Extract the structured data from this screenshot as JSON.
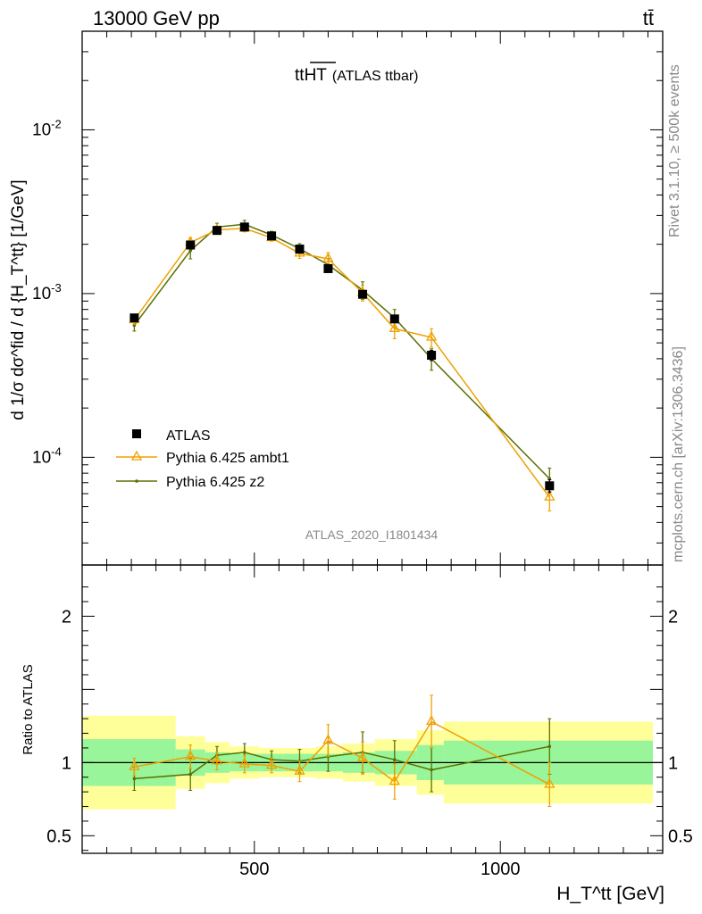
{
  "header": {
    "left_label": "13000 GeV pp",
    "right_label": "tt̄"
  },
  "side_labels": {
    "rivet": "Rivet 3.1.10, ≥ 500k events",
    "mcplots": "mcplots.cern.ch [arXiv:1306.3436]"
  },
  "chart_data": [
    {
      "type": "line",
      "panel": "main",
      "title": "ttHT (ATLAS ttbar)",
      "title_main": "tt",
      "title_over": "HT",
      "title_suffix": "(ATLAS ttbar)",
      "analysis_label": "ATLAS_2020_I1801434",
      "ylabel": "d 1/σ dσ^fid / d {H_T^tt} [1/GeV]",
      "xlabel": "H_T^tt [GeV]",
      "yscale": "log",
      "xlim": [
        150,
        1330
      ],
      "ylim": [
        2.2e-05,
        0.04
      ],
      "y_tick_labels": [
        "10^-2",
        "10^-3",
        "10^-4"
      ],
      "x": [
        256,
        370,
        424,
        480,
        535,
        592,
        650,
        720,
        785,
        860,
        1100
      ],
      "series": [
        {
          "name": "ATLAS",
          "style": "marker",
          "color": "#000000",
          "values": [
            0.00071,
            0.00198,
            0.00243,
            0.00255,
            0.00225,
            0.00187,
            0.00142,
            0.00099,
            0.0007,
            0.00042,
            6.7e-05
          ],
          "errors": [
            3e-05,
            8e-05,
            8e-05,
            8e-05,
            8e-05,
            7e-05,
            6e-05,
            5e-05,
            3e-05,
            3e-05,
            6e-06
          ]
        },
        {
          "name": "Pythia 6.425 ambt1",
          "style": "line-triangle",
          "color": "#f0a000",
          "values": [
            0.00069,
            0.00205,
            0.00245,
            0.0025,
            0.00219,
            0.00176,
            0.00163,
            0.00101,
            0.00061,
            0.00054,
            5.7e-05
          ],
          "errors": [
            4e-05,
            0.00015,
            0.00012,
            0.00012,
            0.0001,
            0.00012,
            0.00015,
            0.00011,
            8e-05,
            7e-05,
            1e-05
          ]
        },
        {
          "name": "Pythia 6.425 z2",
          "style": "line-dot",
          "color": "#5a7000",
          "values": [
            0.00064,
            0.00183,
            0.00255,
            0.00265,
            0.00228,
            0.00188,
            0.0015,
            0.00105,
            0.00071,
            0.0004,
            7.4e-05
          ],
          "errors": [
            5e-05,
            0.0002,
            0.00014,
            0.00015,
            0.00012,
            0.00014,
            0.00014,
            0.00013,
            9e-05,
            6e-05,
            1.2e-05
          ]
        }
      ]
    },
    {
      "type": "line",
      "panel": "ratio",
      "ylabel": "Ratio to ATLAS",
      "xlim": [
        150,
        1330
      ],
      "ylim": [
        0.38,
        2.35
      ],
      "y_tick_labels": [
        "2",
        "1",
        "0.5"
      ],
      "x_tick_labels": [
        "500",
        "1000"
      ],
      "reference_line": 1.0,
      "bands": {
        "edges": [
          150,
          340,
          400,
          450,
          510,
          560,
          625,
          680,
          745,
          830,
          885,
          1310
        ],
        "inner": [
          0.16,
          0.09,
          0.07,
          0.06,
          0.06,
          0.06,
          0.06,
          0.07,
          0.08,
          0.12,
          0.15
        ],
        "outer": [
          0.32,
          0.18,
          0.14,
          0.11,
          0.1,
          0.1,
          0.11,
          0.13,
          0.16,
          0.22,
          0.28
        ]
      },
      "series": [
        {
          "name": "Pythia 6.425 ambt1",
          "color": "#f0a000",
          "values": [
            0.97,
            1.04,
            1.01,
            0.99,
            0.98,
            0.94,
            1.15,
            1.03,
            0.87,
            1.28,
            0.85
          ],
          "errors": [
            0.06,
            0.08,
            0.06,
            0.06,
            0.05,
            0.07,
            0.11,
            0.11,
            0.12,
            0.18,
            0.15
          ]
        },
        {
          "name": "Pythia 6.425 z2",
          "color": "#5a7000",
          "values": [
            0.89,
            0.92,
            1.05,
            1.07,
            1.02,
            1.01,
            1.04,
            1.07,
            1.02,
            0.95,
            1.11
          ],
          "errors": [
            0.08,
            0.11,
            0.06,
            0.06,
            0.06,
            0.08,
            0.1,
            0.14,
            0.13,
            0.15,
            0.19
          ]
        }
      ]
    }
  ],
  "colors": {
    "band_inner": "#99f599",
    "band_outer": "#ffff99",
    "atlas": "#000000",
    "ambt1": "#f0a000",
    "z2": "#5a7000"
  }
}
